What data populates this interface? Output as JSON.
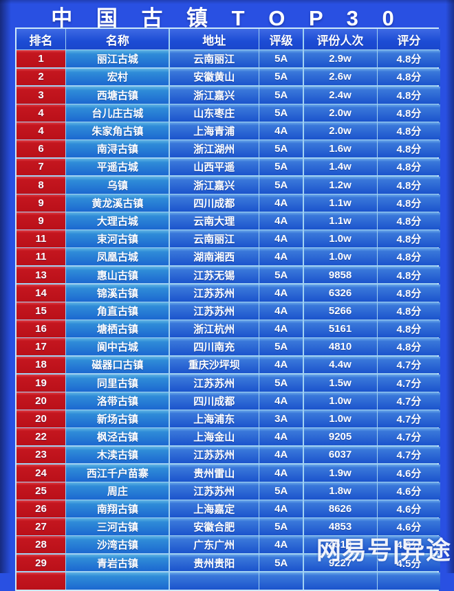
{
  "title": "中 国 古 镇 T O P 3 0",
  "watermark": "网易号|异途",
  "colors": {
    "page_bg": "#2950e2",
    "rank_red": "#c4161f",
    "name_blue": "#2f8cd8",
    "cell_blue": "#1b53cc",
    "header_blue": "#1c4cd4",
    "grid_line": "#a2d2f2",
    "text": "#ffffff"
  },
  "chart_data": {
    "type": "table",
    "title": "中国古镇TOP30",
    "columns": [
      "排名",
      "名称",
      "地址",
      "评级",
      "评份人次",
      "评分"
    ],
    "column_keys": [
      "rank",
      "name",
      "address",
      "rating",
      "review-count",
      "score"
    ],
    "rows": [
      [
        "1",
        "丽江古城",
        "云南丽江",
        "5A",
        "2.9w",
        "4.8分"
      ],
      [
        "2",
        "宏村",
        "安徽黄山",
        "5A",
        "2.6w",
        "4.8分"
      ],
      [
        "3",
        "西塘古镇",
        "浙江嘉兴",
        "5A",
        "2.4w",
        "4.8分"
      ],
      [
        "4",
        "台儿庄古城",
        "山东枣庄",
        "5A",
        "2.0w",
        "4.8分"
      ],
      [
        "4",
        "朱家角古镇",
        "上海青浦",
        "4A",
        "2.0w",
        "4.8分"
      ],
      [
        "6",
        "南浔古镇",
        "浙江湖州",
        "5A",
        "1.6w",
        "4.8分"
      ],
      [
        "7",
        "平遥古城",
        "山西平遥",
        "5A",
        "1.4w",
        "4.8分"
      ],
      [
        "8",
        "乌镇",
        "浙江嘉兴",
        "5A",
        "1.2w",
        "4.8分"
      ],
      [
        "9",
        "黄龙溪古镇",
        "四川成都",
        "4A",
        "1.1w",
        "4.8分"
      ],
      [
        "9",
        "大理古城",
        "云南大理",
        "4A",
        "1.1w",
        "4.8分"
      ],
      [
        "11",
        "束河古镇",
        "云南丽江",
        "4A",
        "1.0w",
        "4.8分"
      ],
      [
        "11",
        "凤凰古城",
        "湖南湘西",
        "4A",
        "1.0w",
        "4.8分"
      ],
      [
        "13",
        "惠山古镇",
        "江苏无锡",
        "5A",
        "9858",
        "4.8分"
      ],
      [
        "14",
        "锦溪古镇",
        "江苏苏州",
        "4A",
        "6326",
        "4.8分"
      ],
      [
        "15",
        "角直古镇",
        "江苏苏州",
        "4A",
        "5266",
        "4.8分"
      ],
      [
        "16",
        "塘栖古镇",
        "浙江杭州",
        "4A",
        "5161",
        "4.8分"
      ],
      [
        "17",
        "阆中古城",
        "四川南充",
        "5A",
        "4810",
        "4.8分"
      ],
      [
        "18",
        "磁器口古镇",
        "重庆沙坪坝",
        "4A",
        "4.4w",
        "4.7分"
      ],
      [
        "19",
        "同里古镇",
        "江苏苏州",
        "5A",
        "1.5w",
        "4.7分"
      ],
      [
        "20",
        "洛带古镇",
        "四川成都",
        "4A",
        "1.0w",
        "4.7分"
      ],
      [
        "20",
        "新场古镇",
        "上海浦东",
        "3A",
        "1.0w",
        "4.7分"
      ],
      [
        "22",
        "枫泾古镇",
        "上海金山",
        "4A",
        "9205",
        "4.7分"
      ],
      [
        "23",
        "木渎古镇",
        "江苏苏州",
        "4A",
        "6037",
        "4.7分"
      ],
      [
        "24",
        "西江千户苗寨",
        "贵州雷山",
        "4A",
        "1.9w",
        "4.6分"
      ],
      [
        "25",
        "周庄",
        "江苏苏州",
        "5A",
        "1.8w",
        "4.6分"
      ],
      [
        "26",
        "南翔古镇",
        "上海嘉定",
        "4A",
        "8626",
        "4.6分"
      ],
      [
        "27",
        "三河古镇",
        "安徽合肥",
        "5A",
        "4853",
        "4.6分"
      ],
      [
        "28",
        "沙湾古镇",
        "广东广州",
        "4A",
        "4513",
        "4.6分"
      ],
      [
        "29",
        "青岩古镇",
        "贵州贵阳",
        "5A",
        "9227",
        "4.5分"
      ]
    ]
  }
}
